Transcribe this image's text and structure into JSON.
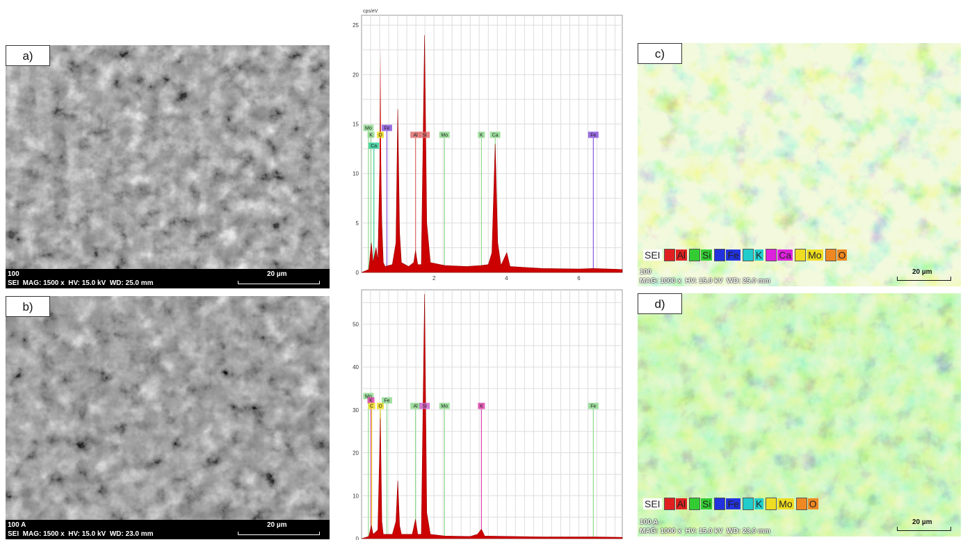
{
  "panels": {
    "a": {
      "tag": "a)",
      "label": "100",
      "info": "SEI  MAG: 1500 x  HV: 15.0 kV  WD: 25.0 mm",
      "scale": "20 µm"
    },
    "b": {
      "tag": "b)",
      "label": "100 A",
      "info": "SEI  MAG: 1500 x  HV: 15.0 kV  WD: 23.0 mm",
      "scale": "20 µm"
    },
    "c": {
      "tag": "c)",
      "label": "100",
      "info": "MAG: 1000 x  HV: 15.0 kV  WD: 25.0 mm",
      "scale": "20 µm",
      "legend": [
        {
          "text": "SEI",
          "color": "#ffffff"
        },
        {
          "text": "Al",
          "color": "#e02020"
        },
        {
          "text": "Si",
          "color": "#33cc33"
        },
        {
          "text": "Fe",
          "color": "#2233dd"
        },
        {
          "text": "K",
          "color": "#22cccc"
        },
        {
          "text": "Ca",
          "color": "#dd22dd"
        },
        {
          "text": "Mo",
          "color": "#eedd22"
        },
        {
          "text": "O",
          "color": "#ee8822"
        }
      ]
    },
    "d": {
      "tag": "d)",
      "label": "100 A",
      "info": "MAG: 1000 x  HV: 15.0 kV  WD: 23.0 mm",
      "scale": "20 µm",
      "legend": [
        {
          "text": "SEI",
          "color": "#ffffff"
        },
        {
          "text": "Al",
          "color": "#e02020"
        },
        {
          "text": "Si",
          "color": "#33cc33"
        },
        {
          "text": "Fe",
          "color": "#2233dd"
        },
        {
          "text": "K",
          "color": "#22cccc"
        },
        {
          "text": "Mo",
          "color": "#eedd22"
        },
        {
          "text": "O",
          "color": "#ee8822"
        }
      ]
    }
  },
  "chart_data": [
    {
      "type": "line",
      "ylabel": "cps/eV",
      "xlim": [
        0,
        7.2
      ],
      "ylim": [
        0,
        26
      ],
      "xticks": [
        2,
        4,
        6
      ],
      "yticks": [
        0,
        5,
        10,
        15,
        20,
        25
      ],
      "fill_color": "#cc0000",
      "spectrum": [
        [
          0,
          0
        ],
        [
          0.2,
          0.3
        ],
        [
          0.27,
          3
        ],
        [
          0.32,
          1
        ],
        [
          0.4,
          2.5
        ],
        [
          0.45,
          1.2
        ],
        [
          0.52,
          13.5
        ],
        [
          0.56,
          5
        ],
        [
          0.6,
          1
        ],
        [
          0.65,
          0.6
        ],
        [
          0.85,
          0.8
        ],
        [
          0.95,
          3
        ],
        [
          1.0,
          16.5
        ],
        [
          1.05,
          4
        ],
        [
          1.1,
          1
        ],
        [
          1.3,
          0.6
        ],
        [
          1.44,
          1
        ],
        [
          1.49,
          2.2
        ],
        [
          1.55,
          0.8
        ],
        [
          1.65,
          0.8
        ],
        [
          1.74,
          24
        ],
        [
          1.8,
          5
        ],
        [
          1.9,
          1
        ],
        [
          2.3,
          0.7
        ],
        [
          2.9,
          0.6
        ],
        [
          3.3,
          0.7
        ],
        [
          3.5,
          0.8
        ],
        [
          3.6,
          2
        ],
        [
          3.69,
          13
        ],
        [
          3.76,
          3
        ],
        [
          3.85,
          0.7
        ],
        [
          4.01,
          2
        ],
        [
          4.1,
          0.6
        ],
        [
          5,
          0.4
        ],
        [
          6,
          0.35
        ],
        [
          6.4,
          0.4
        ],
        [
          7.2,
          0.3
        ]
      ],
      "peak_spike": {
        "x": 0.52,
        "y": 22.6
      },
      "lines": [
        {
          "element": "Mo",
          "x": 0.19,
          "y": 14.3,
          "color": "#8fd98f"
        },
        {
          "element": "K",
          "x": 0.26,
          "y": 13.6,
          "color": "#8fd98f"
        },
        {
          "element": "Ca",
          "x": 0.34,
          "y": 12.5,
          "color": "#33cc99"
        },
        {
          "element": "O",
          "x": 0.52,
          "y": 13.6,
          "color": "#eedd22"
        },
        {
          "element": "Fe",
          "x": 0.7,
          "y": 14.3,
          "color": "#8855dd"
        },
        {
          "element": "Al",
          "x": 1.49,
          "y": 13.6,
          "color": "#e07070"
        },
        {
          "element": "Si",
          "x": 1.74,
          "y": 13.6,
          "color": "#e07070"
        },
        {
          "element": "Mo",
          "x": 2.29,
          "y": 13.6,
          "color": "#8fd98f"
        },
        {
          "element": "K",
          "x": 3.31,
          "y": 13.6,
          "color": "#8fd98f"
        },
        {
          "element": "Ca",
          "x": 3.69,
          "y": 13.6,
          "color": "#8fd98f"
        },
        {
          "element": "Fe",
          "x": 6.4,
          "y": 13.6,
          "color": "#8855dd"
        }
      ]
    },
    {
      "type": "line",
      "ylabel": "",
      "xlim": [
        0,
        7.2
      ],
      "ylim": [
        0,
        58
      ],
      "xticks": [],
      "yticks": [
        0,
        10,
        20,
        30,
        40,
        50
      ],
      "fill_color": "#cc0000",
      "spectrum": [
        [
          0,
          0
        ],
        [
          0.2,
          0.5
        ],
        [
          0.27,
          3
        ],
        [
          0.32,
          1
        ],
        [
          0.45,
          2
        ],
        [
          0.52,
          28
        ],
        [
          0.56,
          4
        ],
        [
          0.6,
          1
        ],
        [
          0.85,
          1
        ],
        [
          0.95,
          4
        ],
        [
          1.0,
          13.5
        ],
        [
          1.05,
          3
        ],
        [
          1.1,
          1
        ],
        [
          1.4,
          1
        ],
        [
          1.49,
          4.5
        ],
        [
          1.55,
          1
        ],
        [
          1.65,
          1
        ],
        [
          1.74,
          57
        ],
        [
          1.8,
          6
        ],
        [
          1.9,
          1
        ],
        [
          2.3,
          0.6
        ],
        [
          3.0,
          0.5
        ],
        [
          3.2,
          1
        ],
        [
          3.31,
          2.2
        ],
        [
          3.4,
          0.6
        ],
        [
          5,
          0.4
        ],
        [
          6.4,
          0.4
        ],
        [
          7.2,
          0.3
        ]
      ],
      "peak_spike": {
        "x": 0.52,
        "y": 30
      },
      "lines": [
        {
          "element": "Mo",
          "x": 0.19,
          "y": 32.5,
          "color": "#8fd98f"
        },
        {
          "element": "K",
          "x": 0.26,
          "y": 31.5,
          "color": "#dd44aa"
        },
        {
          "element": "C",
          "x": 0.28,
          "y": 30.2,
          "color": "#eedd22"
        },
        {
          "element": "O",
          "x": 0.52,
          "y": 30.2,
          "color": "#eedd22"
        },
        {
          "element": "Fe",
          "x": 0.7,
          "y": 31.5,
          "color": "#8fd98f"
        },
        {
          "element": "Al",
          "x": 1.49,
          "y": 30.2,
          "color": "#8fd98f"
        },
        {
          "element": "Si",
          "x": 1.74,
          "y": 30.2,
          "color": "#cc66cc"
        },
        {
          "element": "Mo",
          "x": 2.29,
          "y": 30.2,
          "color": "#8fd98f"
        },
        {
          "element": "K",
          "x": 3.31,
          "y": 30.2,
          "color": "#dd44aa"
        },
        {
          "element": "Fe",
          "x": 6.4,
          "y": 30.2,
          "color": "#8fd98f"
        }
      ]
    }
  ]
}
